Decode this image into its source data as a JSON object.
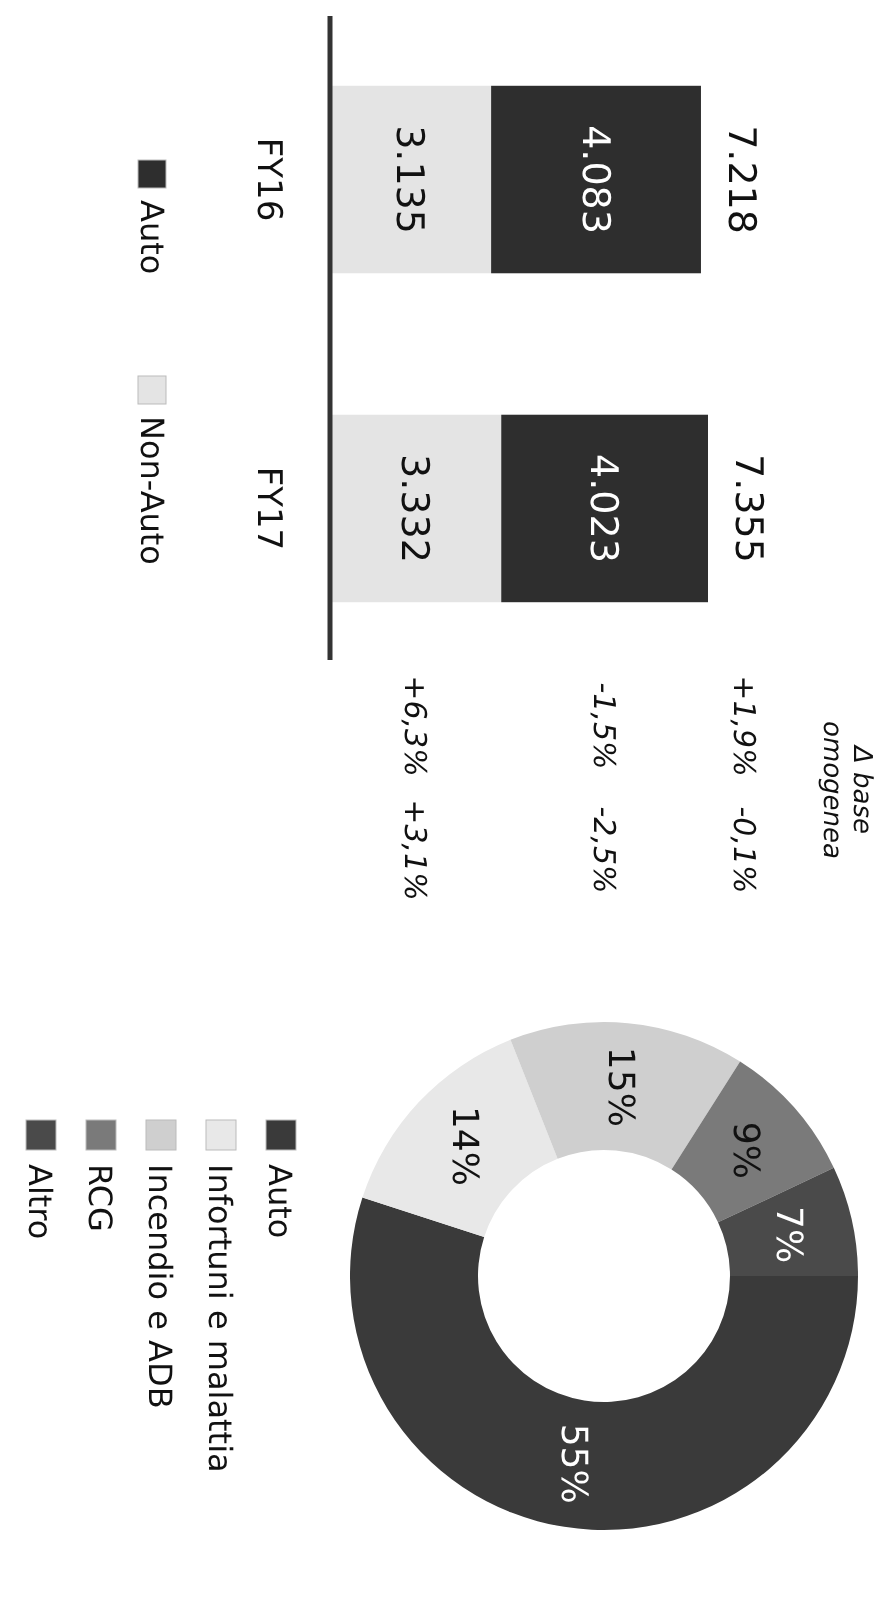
{
  "chart_data": [
    {
      "type": "bar",
      "stacked": true,
      "orientation": "horizontal",
      "categories": [
        "FY16",
        "FY17"
      ],
      "series": [
        {
          "name": "Non-Auto",
          "color": "#e4e4e4",
          "values": [
            3135,
            3332
          ],
          "value_labels": [
            "3.135",
            "3.332"
          ]
        },
        {
          "name": "Auto",
          "color": "#2e2e2e",
          "values": [
            4083,
            4023
          ],
          "value_labels": [
            "4.083",
            "4.023"
          ]
        }
      ],
      "totals": [
        "7.218",
        "7.355"
      ],
      "legend": "bottom",
      "annotations": [
        "Δ base omogenea",
        "+1,9%",
        "-0,1%",
        "-1,5%",
        "-2,5%",
        "+6,3%",
        "+3,1%"
      ]
    },
    {
      "type": "donut",
      "categories": [
        "Auto",
        "Infortuni e malattia",
        "Incendio e ADB",
        "RCG",
        "Altro"
      ],
      "values": [
        55,
        14,
        15,
        9,
        7
      ],
      "value_labels": [
        "55%",
        "14%",
        "15%",
        "9%",
        "7%"
      ],
      "colors": [
        "#3a3a3a",
        "#e8e8e8",
        "#cfcfcf",
        "#7a7a7a",
        "#4a4a4a"
      ],
      "legend": "bottom left"
    }
  ]
}
